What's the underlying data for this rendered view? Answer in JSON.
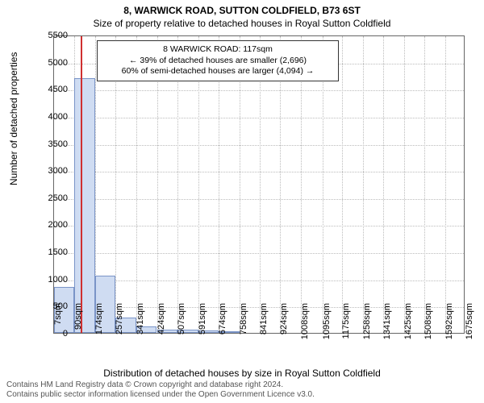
{
  "title_line1": "8, WARWICK ROAD, SUTTON COLDFIELD, B73 6ST",
  "title_line2": "Size of property relative to detached houses in Royal Sutton Coldfield",
  "ylabel": "Number of detached properties",
  "xlabel": "Distribution of detached houses by size in Royal Sutton Coldfield",
  "footer_line1": "Contains HM Land Registry data © Crown copyright and database right 2024.",
  "footer_line2": "Contains public sector information licensed under the Open Government Licence v3.0.",
  "chart": {
    "type": "histogram",
    "background_color": "#ffffff",
    "grid_color": "#bbbbbb",
    "border_color": "#666666",
    "ylim": [
      0,
      5500
    ],
    "yticks": [
      0,
      500,
      1000,
      1500,
      2000,
      2500,
      3000,
      3500,
      4000,
      4500,
      5000,
      5500
    ],
    "xticks": [
      "7sqm",
      "90sqm",
      "174sqm",
      "257sqm",
      "341sqm",
      "424sqm",
      "507sqm",
      "591sqm",
      "674sqm",
      "758sqm",
      "841sqm",
      "924sqm",
      "1008sqm",
      "1095sqm",
      "1175sqm",
      "1258sqm",
      "1341sqm",
      "1425sqm",
      "1508sqm",
      "1592sqm",
      "1675sqm"
    ],
    "xtick_positions": [
      7,
      90,
      174,
      257,
      341,
      424,
      507,
      591,
      674,
      758,
      841,
      924,
      1008,
      1095,
      1175,
      1258,
      1341,
      1425,
      1508,
      1592,
      1675
    ],
    "xlim": [
      7,
      1675
    ],
    "bar_color": "#cfdcf2",
    "bar_border_color": "#7a94c7",
    "bars": [
      {
        "x0": 7,
        "x1": 90,
        "value": 850
      },
      {
        "x0": 90,
        "x1": 174,
        "value": 4700
      },
      {
        "x0": 174,
        "x1": 257,
        "value": 1050
      },
      {
        "x0": 257,
        "x1": 341,
        "value": 280
      },
      {
        "x0": 341,
        "x1": 424,
        "value": 120
      },
      {
        "x0": 424,
        "x1": 507,
        "value": 60
      },
      {
        "x0": 507,
        "x1": 591,
        "value": 55
      },
      {
        "x0": 591,
        "x1": 674,
        "value": 40
      },
      {
        "x0": 674,
        "x1": 758,
        "value": 20
      }
    ],
    "marker": {
      "x": 117,
      "color": "#d03030"
    }
  },
  "callout": {
    "line1": "8 WARWICK ROAD: 117sqm",
    "line2": "← 39% of detached houses are smaller (2,696)",
    "line3": "60% of semi-detached houses are larger (4,094) →"
  }
}
